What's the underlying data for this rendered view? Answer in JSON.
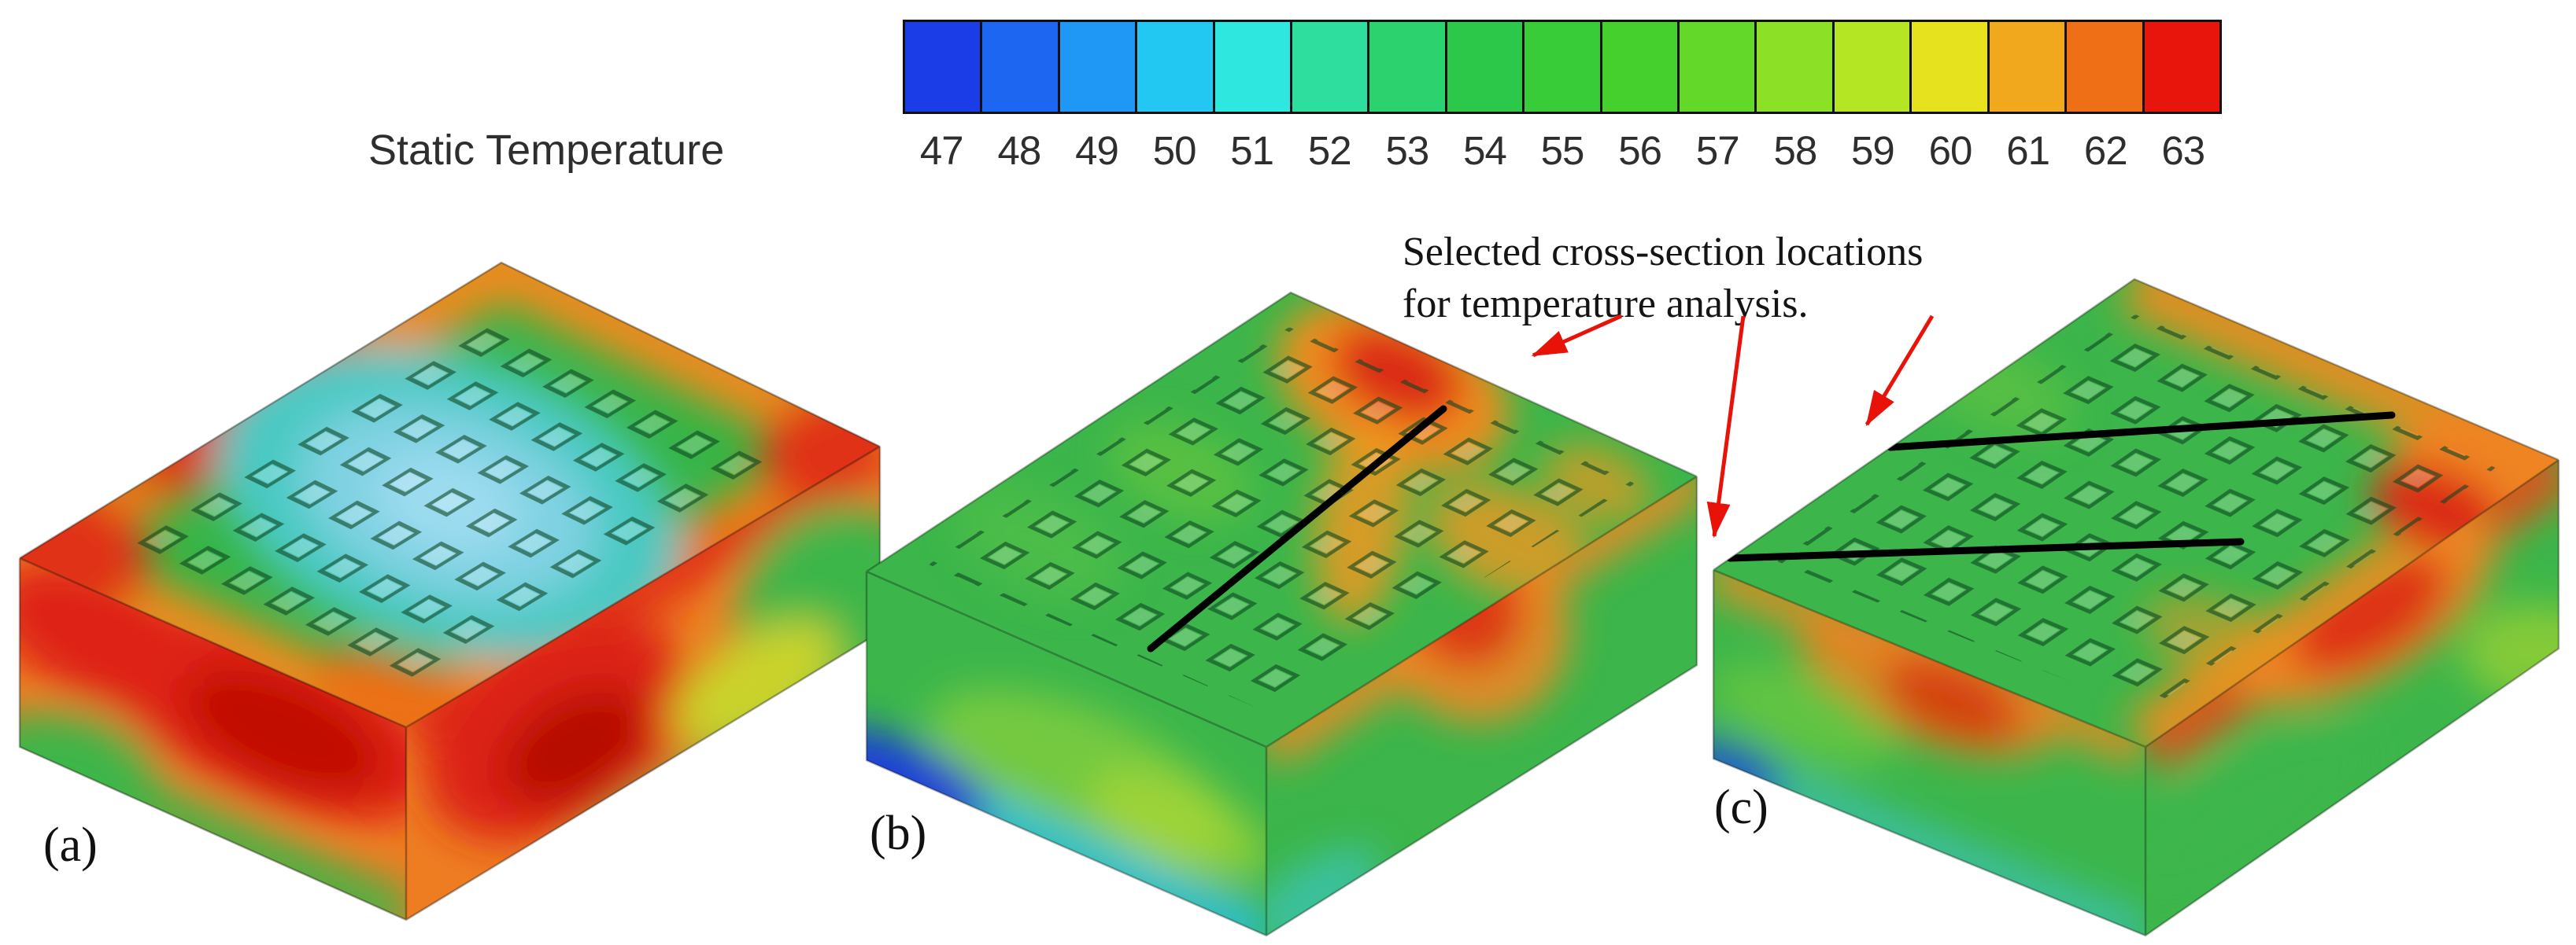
{
  "colorbar": {
    "title": "Static Temperature",
    "ticks": [
      "47",
      "48",
      "49",
      "50",
      "51",
      "52",
      "53",
      "54",
      "55",
      "56",
      "57",
      "58",
      "59",
      "60",
      "61",
      "62",
      "63"
    ],
    "colors": [
      "#1a3de8",
      "#1d66f2",
      "#1f97f5",
      "#22c8f2",
      "#2ee8e0",
      "#2ede9f",
      "#2bd26e",
      "#2bc84a",
      "#38cc39",
      "#46d02e",
      "#64d829",
      "#8ce026",
      "#b4e623",
      "#e6e21e",
      "#f2a81c",
      "#ee6f16",
      "#e8150d"
    ]
  },
  "annotation": {
    "line1": "Selected cross-section locations",
    "line2": "for temperature analysis."
  },
  "subfigures": [
    {
      "label": "(a)",
      "cross_sections": 0
    },
    {
      "label": "(b)",
      "cross_sections": 1
    },
    {
      "label": "(c)",
      "cross_sections": 2
    }
  ],
  "figure": {
    "arrow_color": "#e81208",
    "cross_section_line_color": "#000000"
  },
  "chart_data": {
    "type": "heatmap",
    "title": "Static Temperature",
    "colorbar_ticks": [
      47,
      48,
      49,
      50,
      51,
      52,
      53,
      54,
      55,
      56,
      57,
      58,
      59,
      60,
      61,
      62,
      63
    ],
    "legend_position": "top",
    "subplots": [
      "(a)",
      "(b)",
      "(c)"
    ]
  }
}
